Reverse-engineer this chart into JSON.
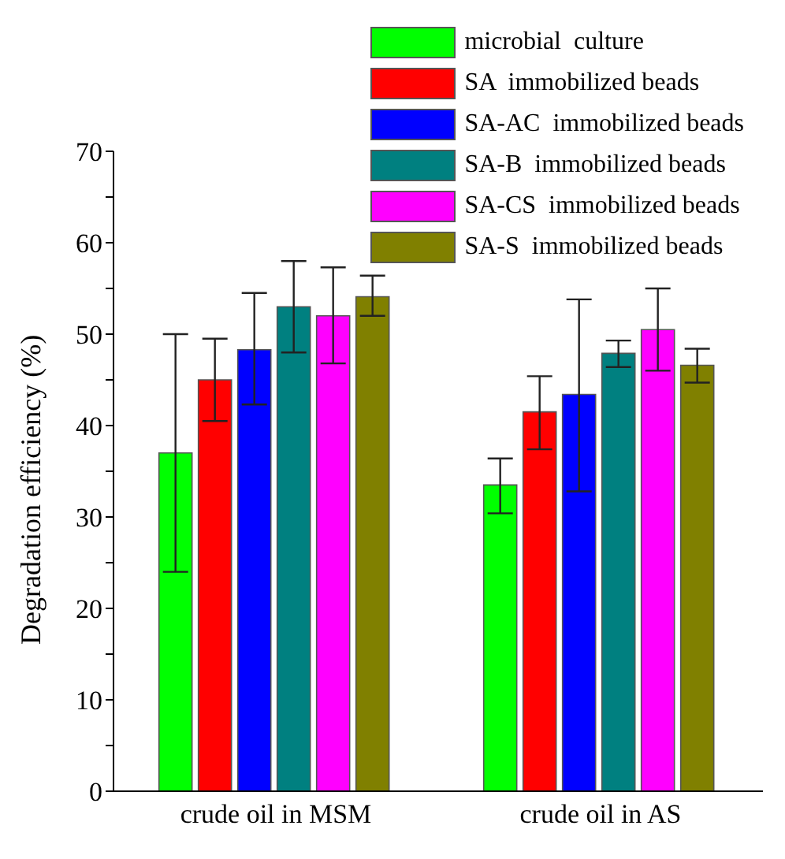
{
  "chart_data": {
    "type": "bar",
    "ylabel": "Degradation efficiency (%)",
    "categories": [
      "crude oil in MSM",
      "crude oil in AS"
    ],
    "series": [
      {
        "name": "microbial  culture",
        "color": "#00ff00",
        "values": [
          37,
          33.5
        ],
        "errors": [
          [
            24,
            50
          ],
          [
            30.4,
            36.4
          ]
        ]
      },
      {
        "name": "SA  immobilized beads",
        "color": "#ff0000",
        "values": [
          45,
          41.5
        ],
        "errors": [
          [
            40.5,
            49.5
          ],
          [
            37.4,
            45.4
          ]
        ]
      },
      {
        "name": "SA-AC  immobilized beads",
        "color": "#0000ff",
        "values": [
          48.3,
          43.4
        ],
        "errors": [
          [
            42.3,
            54.5
          ],
          [
            32.8,
            53.8
          ]
        ]
      },
      {
        "name": "SA-B  immobilized beads",
        "color": "#008080",
        "values": [
          53,
          47.9
        ],
        "errors": [
          [
            48,
            58
          ],
          [
            46.4,
            49.3
          ]
        ]
      },
      {
        "name": "SA-CS  immobilized beads",
        "color": "#ff00ff",
        "values": [
          52,
          50.5
        ],
        "errors": [
          [
            46.8,
            57.3
          ],
          [
            46,
            55
          ]
        ]
      },
      {
        "name": "SA-S  immobilized beads",
        "color": "#808000",
        "values": [
          54.1,
          46.6
        ],
        "errors": [
          [
            52,
            56.4
          ],
          [
            44.7,
            48.4
          ]
        ]
      }
    ],
    "ylim": [
      0,
      70
    ],
    "yticks": [
      0,
      {
        "value": 5,
        "label": null
      },
      10,
      {
        "value": 15,
        "label": null
      },
      20,
      {
        "value": 25,
        "label": null
      },
      30,
      {
        "value": 35,
        "label": null
      },
      40,
      {
        "value": 45,
        "label": null
      },
      50,
      {
        "value": 55,
        "label": null
      },
      60,
      {
        "value": 65,
        "label": null
      },
      70
    ],
    "grid": false,
    "legend": "top right"
  }
}
